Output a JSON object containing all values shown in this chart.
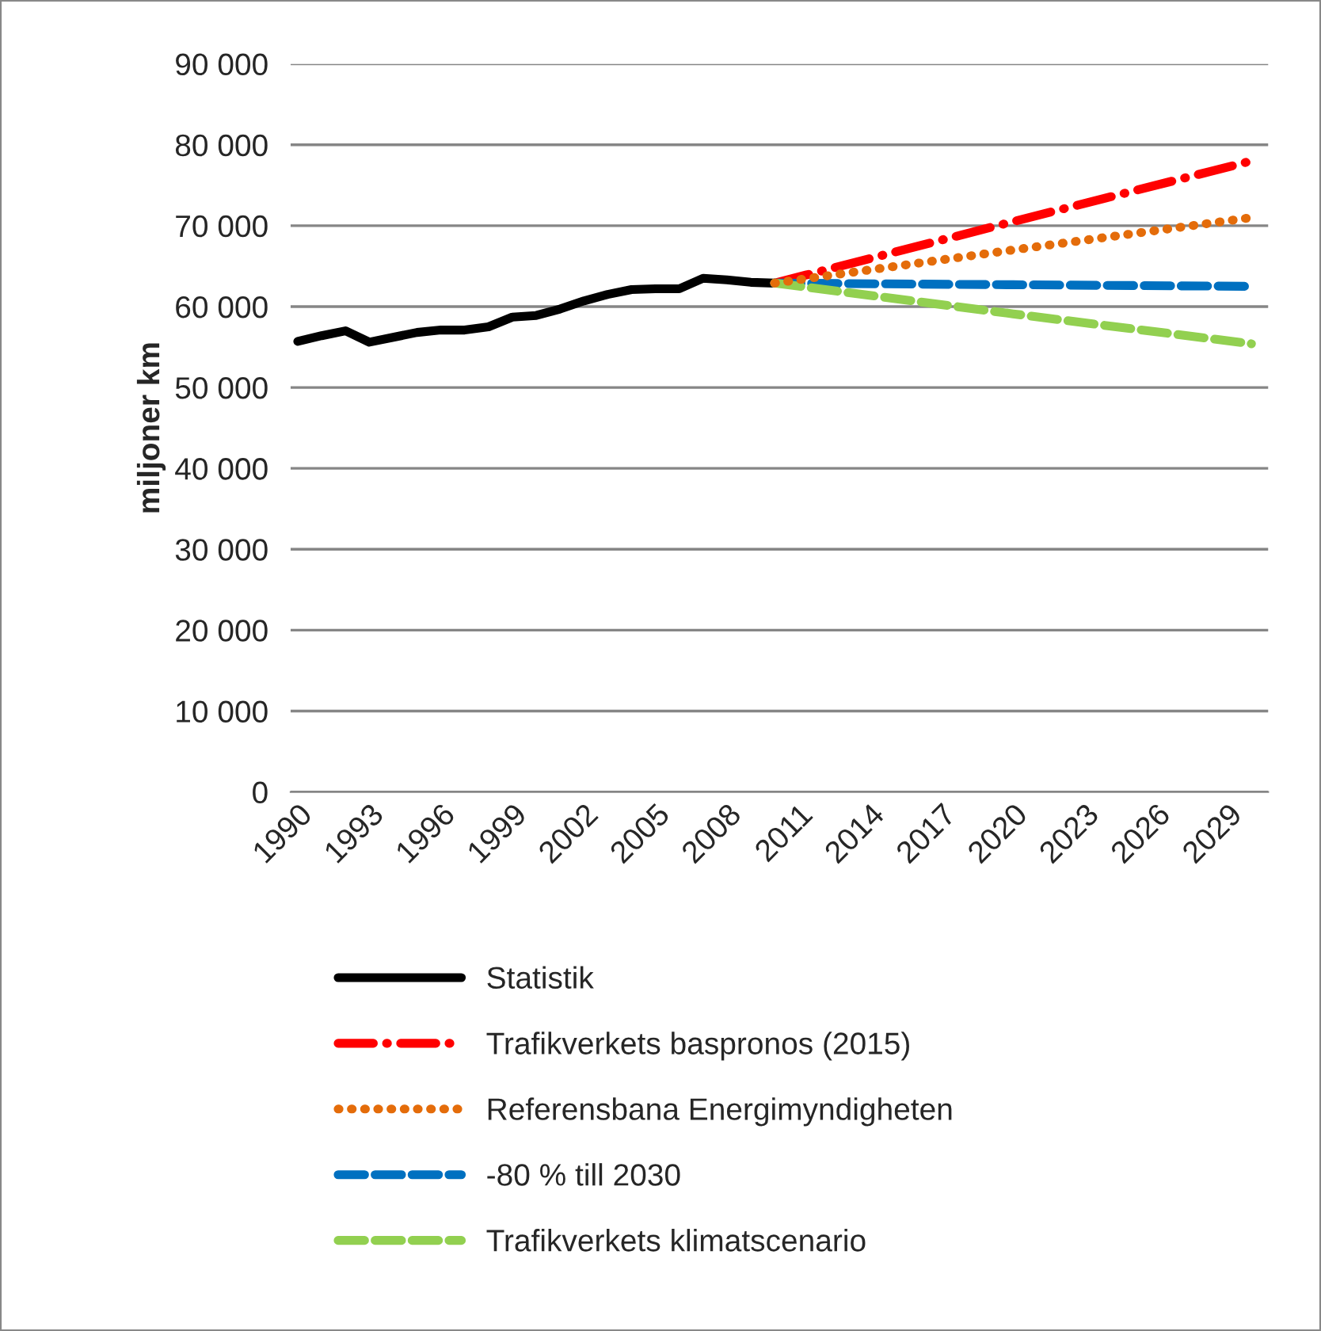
{
  "chart_data": {
    "type": "line",
    "ylabel": "miljoner km",
    "xlim": [
      1989.7,
      2030.7
    ],
    "xticks": [
      1990,
      1993,
      1996,
      1999,
      2002,
      2005,
      2008,
      2011,
      2014,
      2017,
      2020,
      2023,
      2026,
      2029
    ],
    "ylim": [
      0,
      90000
    ],
    "yticks": [
      {
        "value": 0,
        "label": "0"
      },
      {
        "value": 10000,
        "label": "10 000"
      },
      {
        "value": 20000,
        "label": "20 000"
      },
      {
        "value": 30000,
        "label": "30 000"
      },
      {
        "value": 40000,
        "label": "40 000"
      },
      {
        "value": 50000,
        "label": "50 000"
      },
      {
        "value": 60000,
        "label": "60 000"
      },
      {
        "value": 70000,
        "label": "70 000"
      },
      {
        "value": 80000,
        "label": "80 000"
      },
      {
        "value": 90000,
        "label": "90 000"
      }
    ],
    "grid": "y",
    "legend": "bottom",
    "series": [
      {
        "name": "Statistik",
        "color": "#000000",
        "line_style": "solid",
        "x": [
          1990,
          1991,
          1992,
          1993,
          1994,
          1995,
          1996,
          1997,
          1998,
          1999,
          2000,
          2001,
          2002,
          2003,
          2004,
          2005,
          2006,
          2007,
          2008,
          2009,
          2010
        ],
        "values": [
          55700,
          56400,
          57000,
          55600,
          56200,
          56800,
          57100,
          57100,
          57500,
          58700,
          58900,
          59700,
          60700,
          61500,
          62100,
          62200,
          62200,
          63500,
          63300,
          63000,
          62900
        ]
      },
      {
        "name": "Trafikverkets baspronos (2015)",
        "color": "#ff0000",
        "line_style": "dashdot",
        "x": [
          2010,
          2020,
          2030
        ],
        "values": [
          62900,
          70500,
          78000
        ]
      },
      {
        "name": "Referensbana Energimyndigheten",
        "color": "#e46c0a",
        "line_style": "dotted",
        "x": [
          2010,
          2020,
          2030
        ],
        "values": [
          62900,
          67000,
          71000
        ]
      },
      {
        "name": "-80 % till 2030",
        "color": "#0070c0",
        "line_style": "dashed",
        "x": [
          2010,
          2020,
          2030
        ],
        "values": [
          62900,
          62700,
          62500
        ]
      },
      {
        "name": "Trafikverkets klimatscenario",
        "color": "#92d050",
        "line_style": "dashed",
        "x": [
          2010,
          2020,
          2030
        ],
        "values": [
          62900,
          59100,
          55400
        ]
      }
    ]
  }
}
